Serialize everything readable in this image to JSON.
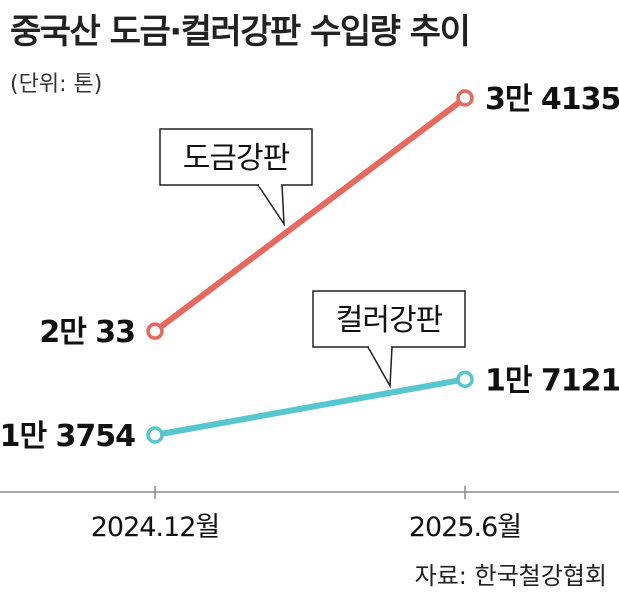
{
  "title": "중국산 도금·컬러강판 수입량 추이",
  "unit_label": "(단위: 톤)",
  "source": "자료: 한국철강협회",
  "chart_data": {
    "type": "line",
    "categories": [
      "2024.12월",
      "2025.6월"
    ],
    "series": [
      {
        "name": "도금강판",
        "values": [
          20033,
          34135
        ],
        "value_labels": [
          "2만 33",
          "3만 4135"
        ],
        "color": "#e8685e"
      },
      {
        "name": "컬러강판",
        "values": [
          13754,
          17121
        ],
        "value_labels": [
          "1만 3754",
          "1만 7121"
        ],
        "color": "#56c6cf"
      }
    ],
    "ylim": [
      9000,
      36000
    ],
    "grid": false
  }
}
